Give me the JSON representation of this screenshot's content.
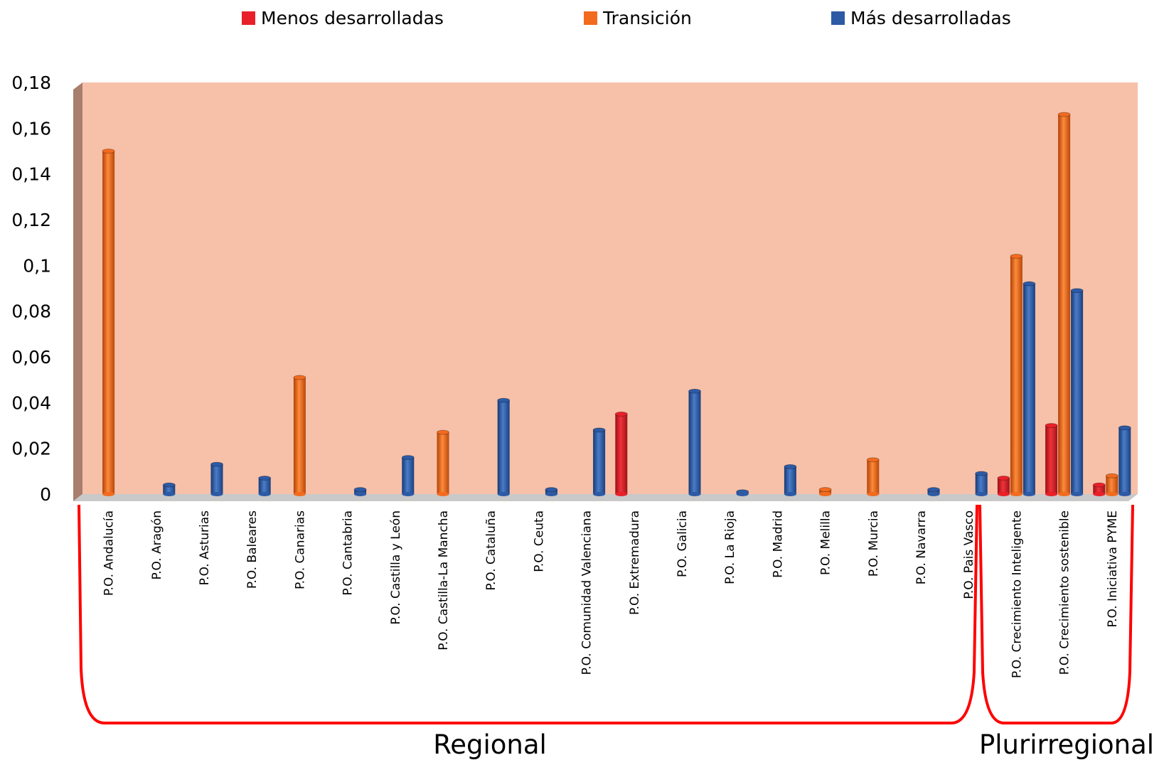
{
  "colors": {
    "plot_bg": "#f7c1a9",
    "left_wall": "#a87e6e",
    "floor": "#c9c9c9",
    "bracket": "#ff0000",
    "series": [
      "#e8202a",
      "#f26b1f",
      "#2d5aa5"
    ]
  },
  "legend": {
    "items": [
      {
        "label": "Menos desarrolladas",
        "color": "#e8202a"
      },
      {
        "label": "Transición",
        "color": "#f26b1f"
      },
      {
        "label": "Más desarrolladas",
        "color": "#2d5aa5"
      }
    ]
  },
  "groups": [
    {
      "label": "Regional",
      "from": 0,
      "to": 18
    },
    {
      "label": "Plurirregional",
      "from": 19,
      "to": 21
    }
  ],
  "chart_data": {
    "type": "bar",
    "title": "",
    "xlabel": "",
    "ylabel": "",
    "ylim": [
      0,
      0.18
    ],
    "yticks": [
      0,
      0.02,
      0.04,
      0.06,
      0.08,
      0.1,
      0.12,
      0.14,
      0.16,
      0.18
    ],
    "ytick_labels": [
      "0",
      "0,02",
      "0,04",
      "0,06",
      "0,08",
      "0,1",
      "0,12",
      "0,14",
      "0,16",
      "0,18"
    ],
    "grid": false,
    "legend_position": "top",
    "categories": [
      "P.O. Andalucía",
      "P.O. Aragón",
      "P.O. Asturias",
      "P.O. Baleares",
      "P.O. Canarias",
      "P.O. Cantabria",
      "P.O. Castilla y León",
      "P.O. Castilla-La Mancha",
      "P.O. Cataluña",
      "P.O. Ceuta",
      "P.O. Comunidad Valenciana",
      "P.O. Extremadura",
      "P.O. Galicia",
      "P.O. La Rioja",
      "P.O. Madrid",
      "P.O. Melilla",
      "P.O. Murcia",
      "P.O. Navarra",
      "P.O. Pais Vasco",
      "P.O. Crecimiento Inteligente",
      "P.O. Crecimiento sostenible",
      "P.O. Iniciativa PYME"
    ],
    "series": [
      {
        "name": "Menos desarrolladas",
        "values": [
          null,
          null,
          null,
          null,
          null,
          null,
          null,
          null,
          null,
          null,
          null,
          0.035,
          null,
          null,
          null,
          null,
          null,
          null,
          null,
          0.007,
          0.03,
          0.004
        ]
      },
      {
        "name": "Transición",
        "values": [
          0.15,
          null,
          null,
          null,
          0.051,
          null,
          null,
          0.027,
          null,
          null,
          null,
          null,
          null,
          null,
          null,
          0.002,
          0.015,
          null,
          null,
          0.104,
          0.166,
          0.008
        ]
      },
      {
        "name": "Más desarrolladas",
        "values": [
          null,
          0.004,
          0.013,
          0.007,
          null,
          0.002,
          0.016,
          null,
          0.041,
          0.002,
          0.028,
          null,
          0.045,
          0.001,
          0.012,
          null,
          null,
          0.002,
          0.009,
          0.092,
          0.089,
          0.029
        ]
      }
    ]
  }
}
